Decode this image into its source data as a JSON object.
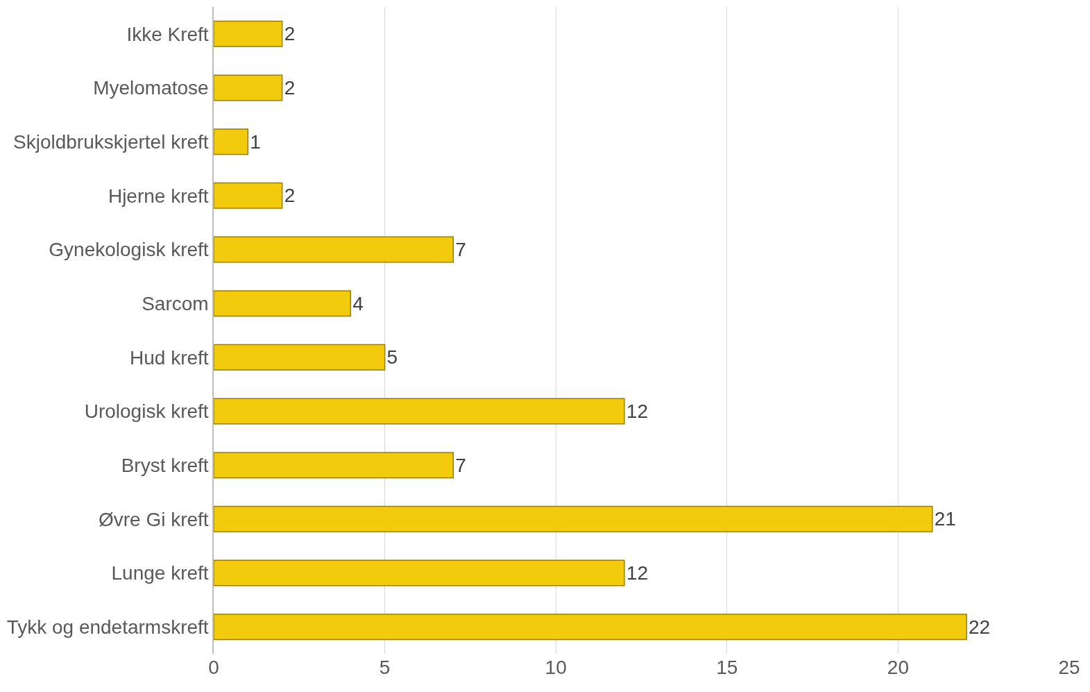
{
  "chart_data": {
    "type": "bar",
    "orientation": "horizontal",
    "categories": [
      "Ikke Kreft",
      "Myelomatose",
      "Skjoldbrukskjertel kreft",
      "Hjerne kreft",
      "Gynekologisk kreft",
      "Sarcom",
      "Hud kreft",
      "Urologisk kreft",
      "Bryst kreft",
      "Øvre Gi kreft",
      "Lunge kreft",
      "Tykk og endetarmskreft"
    ],
    "values": [
      2,
      2,
      1,
      2,
      7,
      4,
      5,
      12,
      7,
      21,
      12,
      22
    ],
    "color": "#f2cc0c",
    "xlim": [
      0,
      25
    ],
    "xticks": [
      0,
      5,
      10,
      15,
      20,
      25
    ],
    "grid": "x",
    "data_labels": true
  }
}
